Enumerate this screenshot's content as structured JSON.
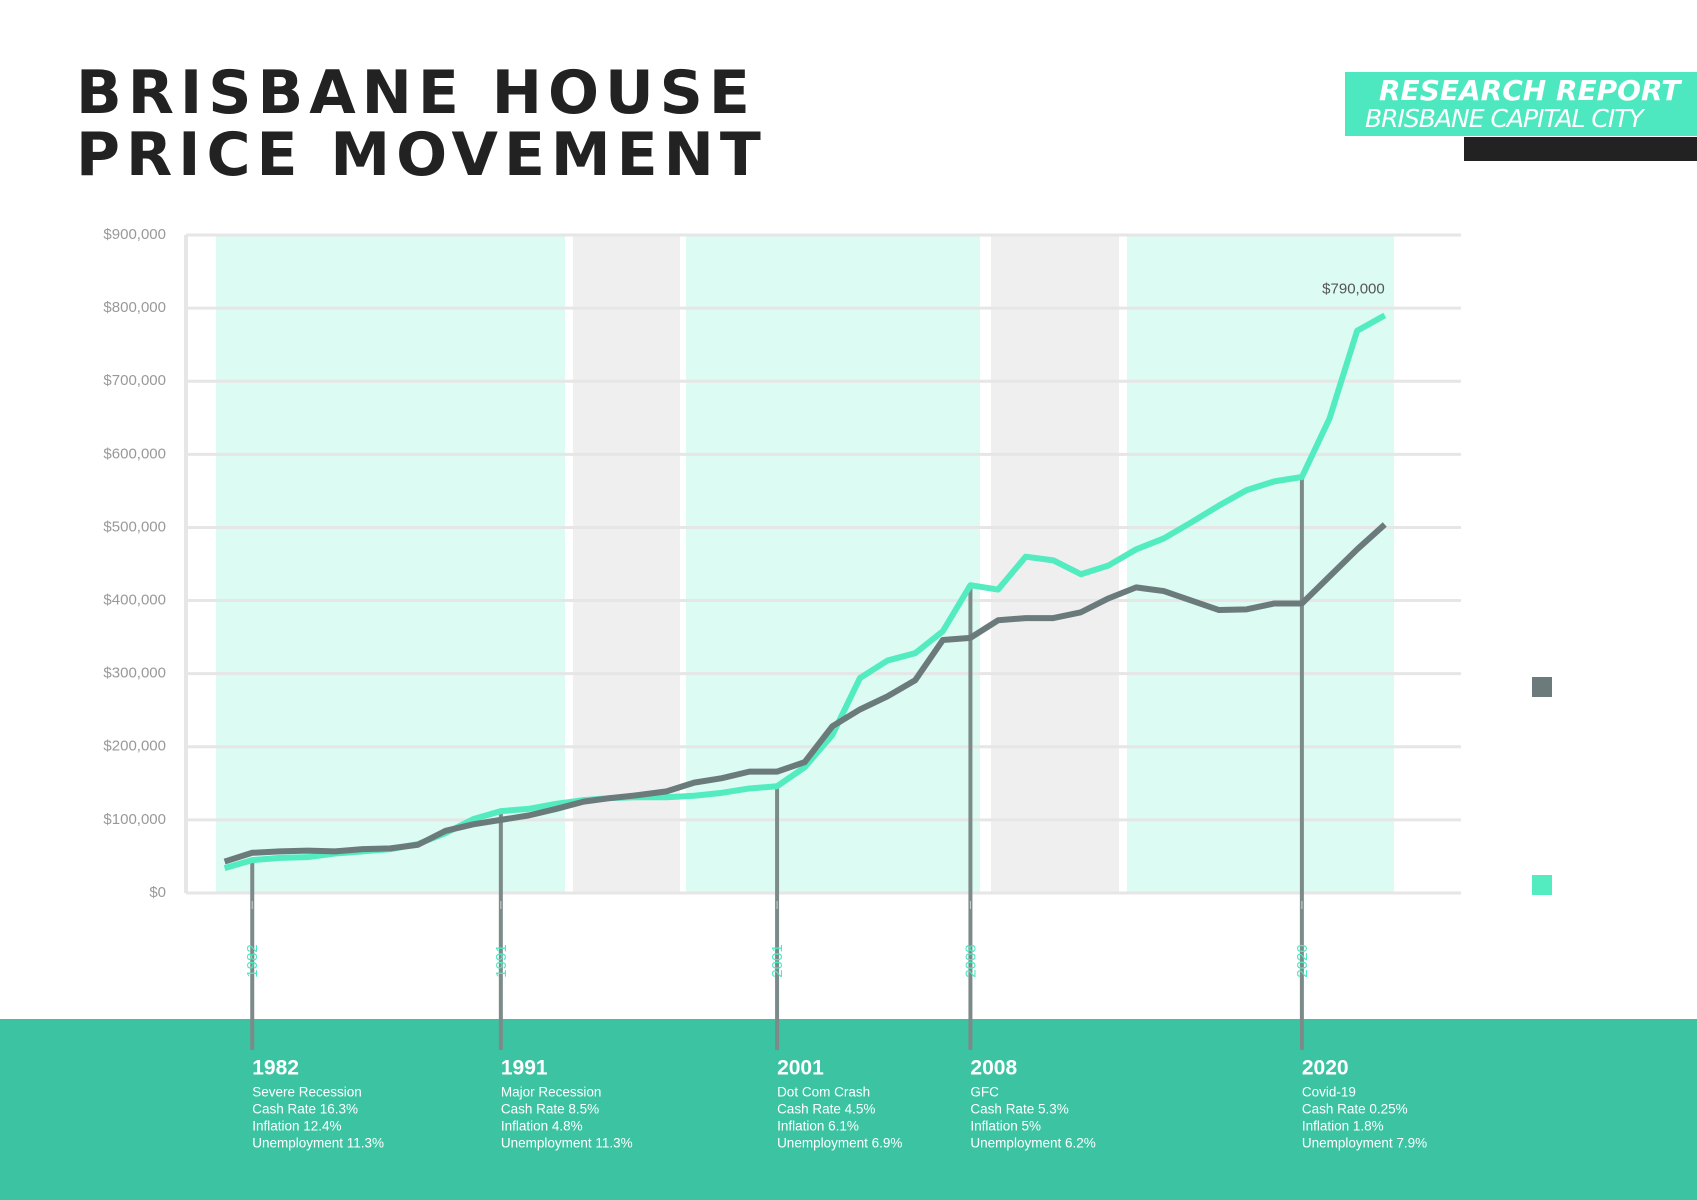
{
  "header": {
    "title": "BRISBANE HOUSE PRICE MOVEMENT",
    "report": "RESEARCH REPORT",
    "subtitle": "BRISBANE CAPITAL CITY"
  },
  "chart_data": {
    "type": "line",
    "x": [
      1981,
      1982,
      1983,
      1984,
      1985,
      1986,
      1987,
      1988,
      1989,
      1990,
      1991,
      1992,
      1993,
      1994,
      1995,
      1996,
      1997,
      1998,
      1999,
      2000,
      2001,
      2002,
      2003,
      2004,
      2005,
      2006,
      2007,
      2008,
      2009,
      2010,
      2011,
      2012,
      2013,
      2014,
      2015,
      2016,
      2017,
      2018,
      2019,
      2020,
      2021,
      2022,
      2023
    ],
    "series": [
      {
        "color": "#52ecc0",
        "values": [
          34000,
          45000,
          48000,
          49000,
          54000,
          57000,
          60000,
          67000,
          82000,
          101000,
          112000,
          115000,
          122000,
          127000,
          130000,
          131000,
          131000,
          133000,
          137000,
          143000,
          146000,
          172000,
          216000,
          294000,
          318000,
          328000,
          358000,
          421000,
          415000,
          460000,
          455000,
          436000,
          448000,
          470000,
          485000,
          507000,
          530000,
          551000,
          563000,
          569000,
          649000,
          769000,
          790000
        ],
        "value_labels": [
          null,
          null,
          null,
          null,
          null,
          null,
          null,
          null,
          null,
          null,
          null,
          null,
          null,
          null,
          null,
          null,
          null,
          null,
          null,
          null,
          null,
          null,
          null,
          null,
          null,
          null,
          null,
          null,
          null,
          null,
          null,
          null,
          null,
          null,
          null,
          null,
          null,
          null,
          null,
          null,
          null,
          null,
          "$790,000"
        ]
      },
      {
        "color": "#6b7b7b",
        "values": [
          43000,
          55000,
          57000,
          58000,
          57000,
          60000,
          61000,
          66000,
          85000,
          94000,
          100000,
          106000,
          115000,
          125000,
          130000,
          134000,
          139000,
          151000,
          157000,
          166000,
          166000,
          179000,
          228000,
          251000,
          269000,
          291000,
          346000,
          349000,
          373000,
          376000,
          376000,
          384000,
          403000,
          418000,
          413000,
          400000,
          387000,
          388000,
          396000,
          396000,
          433000,
          470000,
          504000
        ]
      }
    ],
    "xlim": [
      1980,
      2025
    ],
    "xticks": [
      1982,
      1991,
      2001,
      2008,
      2020
    ],
    "ylim": [
      0,
      900000
    ],
    "yticks": [
      {
        "value": 0,
        "label": "$0"
      },
      {
        "value": 100000,
        "label": "$100,000"
      },
      {
        "value": 200000,
        "label": "$200,000"
      },
      {
        "value": 300000,
        "label": "$300,000"
      },
      {
        "value": 400000,
        "label": "$400,000"
      },
      {
        "value": 500000,
        "label": "$500,000"
      },
      {
        "value": 600000,
        "label": "$600,000"
      },
      {
        "value": 700000,
        "label": "$700,000"
      },
      {
        "value": 800000,
        "label": "$800,000"
      },
      {
        "value": 900000,
        "label": "$900,000"
      }
    ],
    "grid": true
  },
  "events": [
    {
      "year": 1982,
      "lines": [
        "Severe Recession",
        "Cash Rate 16.3%",
        "Inflation 12.4%",
        "Unemployment 11.3%"
      ]
    },
    {
      "year": 1991,
      "lines": [
        "Major Recession",
        "Cash Rate 8.5%",
        "Inflation 4.8%",
        "Unemployment 11.3%"
      ]
    },
    {
      "year": 2001,
      "lines": [
        "Dot Com Crash",
        "Cash Rate 4.5%",
        "Inflation 6.1%",
        "Unemployment 6.9%"
      ]
    },
    {
      "year": 2008,
      "lines": [
        "GFC",
        "Cash Rate 5.3%",
        "Inflation 5%",
        "Unemployment 6.2%"
      ]
    },
    {
      "year": 2020,
      "lines": [
        "Covid-19",
        "Cash Rate 0.25%",
        "Inflation 1.8%",
        "Unemployment 7.9%"
      ]
    }
  ]
}
